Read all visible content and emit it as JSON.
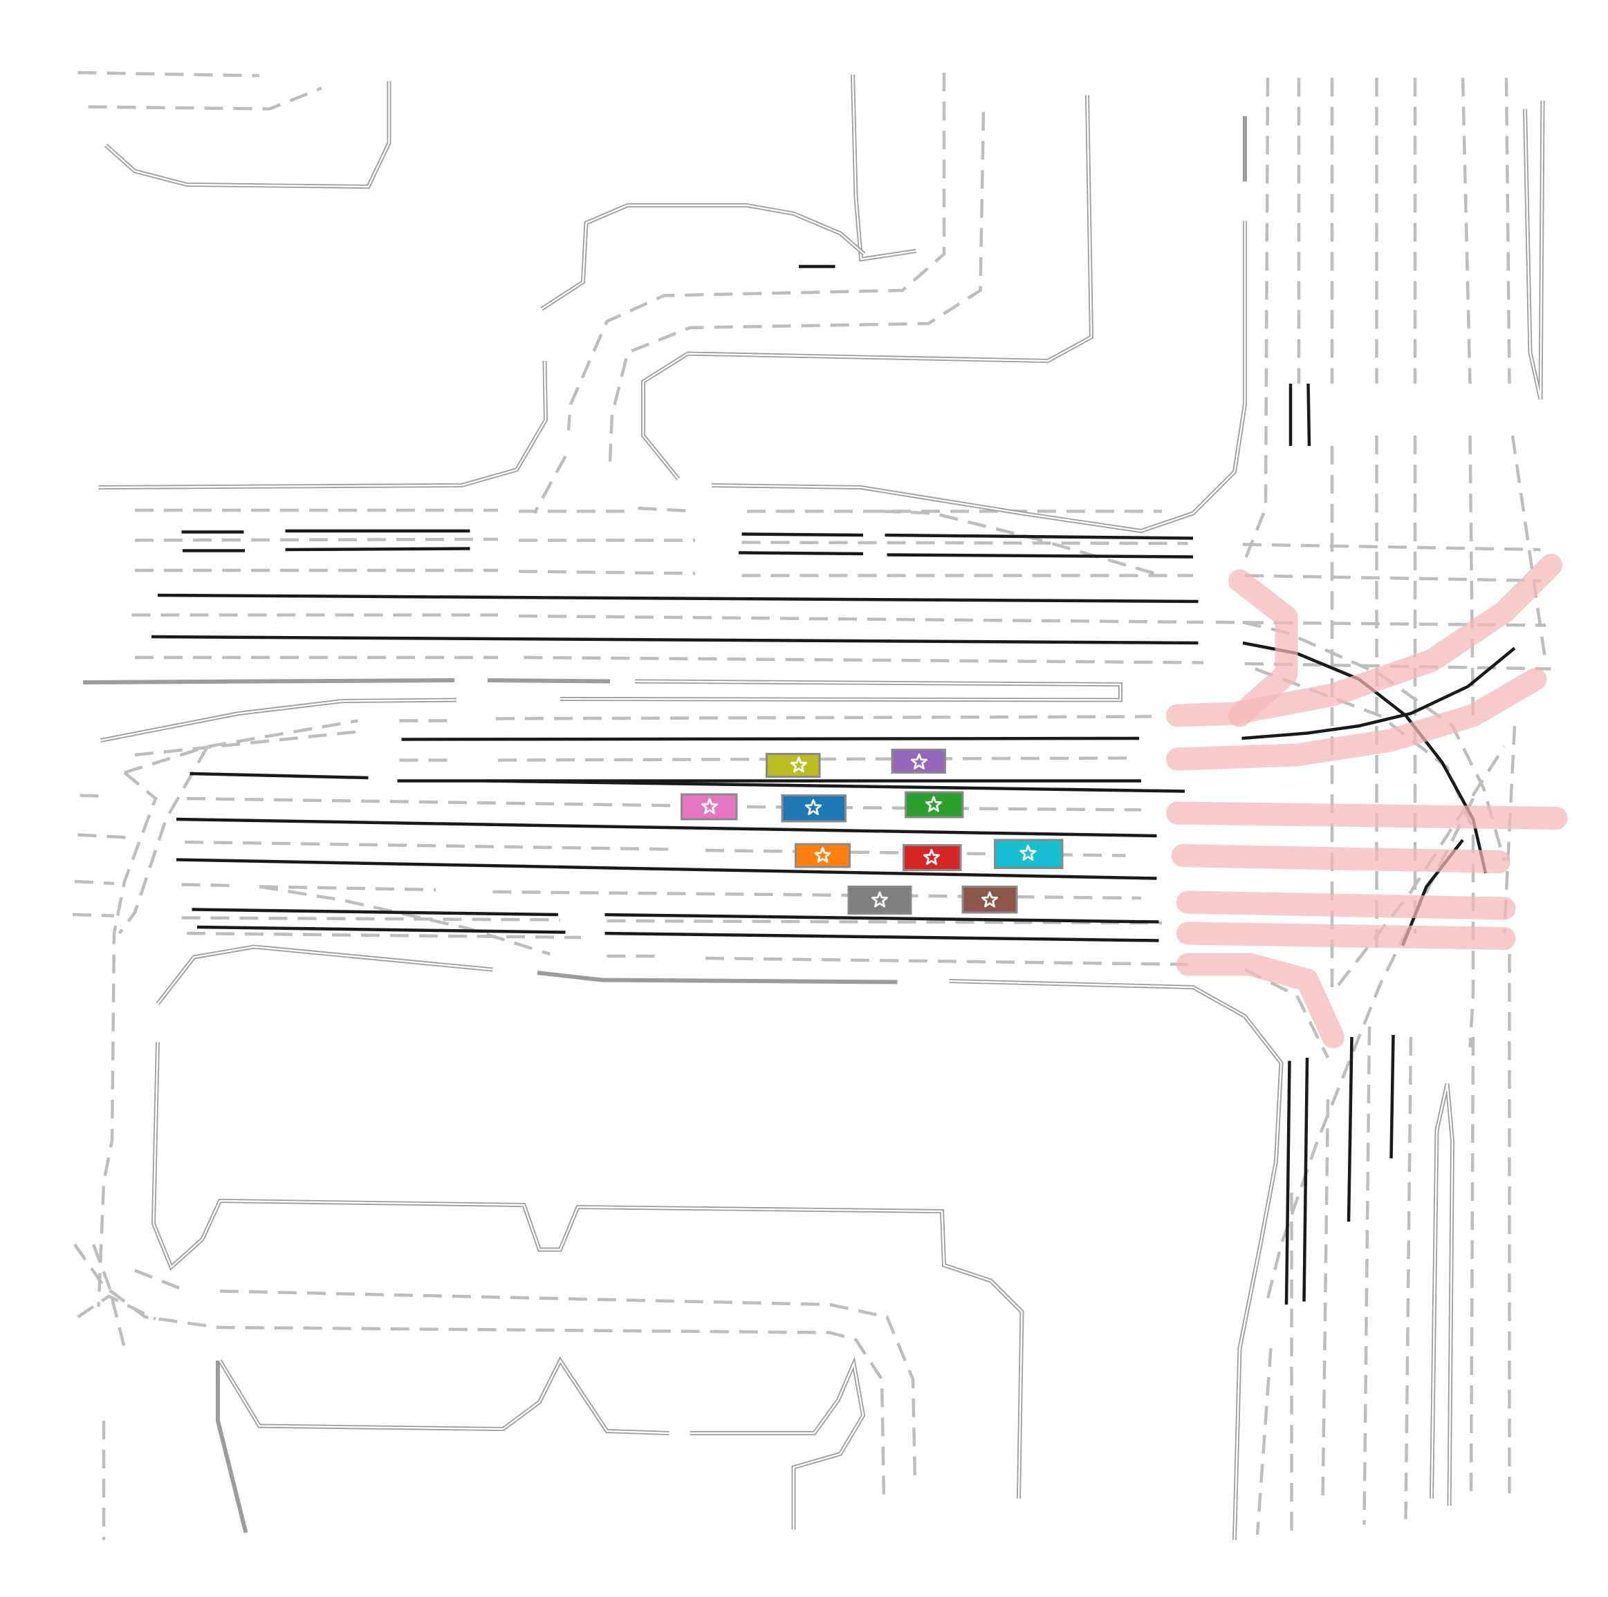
{
  "map": {
    "vehicles": [
      {
        "name": "vehicle-olive",
        "color": "#bcbd22"
      },
      {
        "name": "vehicle-purple",
        "color": "#9467bd"
      },
      {
        "name": "vehicle-pink",
        "color": "#e377c2"
      },
      {
        "name": "vehicle-blue",
        "color": "#1f77b4"
      },
      {
        "name": "vehicle-green",
        "color": "#2ca02c"
      },
      {
        "name": "vehicle-orange",
        "color": "#ff7f0e"
      },
      {
        "name": "vehicle-red",
        "color": "#d62728"
      },
      {
        "name": "vehicle-cyan",
        "color": "#17becf"
      },
      {
        "name": "vehicle-gray",
        "color": "#7f7f7f"
      },
      {
        "name": "vehicle-brown",
        "color": "#8c564b"
      }
    ],
    "vehicle_icon": "star-icon",
    "colors": {
      "lane_divider": "#bdbdbd",
      "road_edge": "#9c9c9c",
      "solid_line": "#1a1a1a",
      "planned_route": "#f4b7b7"
    }
  }
}
